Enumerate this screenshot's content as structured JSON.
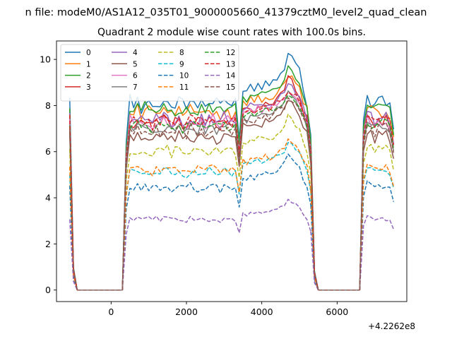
{
  "figure": {
    "suptitle": "n file: modeM0/AS1A12_035T01_9000005660_41379cztM0_level2_quad_clean",
    "title": "Quadrant 2 module wise count rates with 100.0s bins.",
    "x_offset_label": "+4.2262e8"
  },
  "chart_data": {
    "type": "line",
    "title": "Quadrant 2 module wise count rates with 100.0s bins.",
    "xlabel": "",
    "ylabel": "",
    "xlim": [
      -1450,
      7850
    ],
    "ylim": [
      -0.5,
      10.8
    ],
    "x_offset": 422620000,
    "xticks": [
      0,
      2000,
      4000,
      6000
    ],
    "yticks": [
      0,
      2,
      4,
      6,
      8,
      10
    ],
    "grid": false,
    "legend_position": "top-left",
    "legend_columns": 4,
    "segments": [
      {
        "x": [
          -1100,
          -1000,
          -900
        ],
        "profile": [
          1.0,
          0.12,
          0.0
        ]
      },
      {
        "x": [
          -900,
          300
        ],
        "profile": [
          0.0,
          0.0
        ]
      },
      {
        "x": [
          300,
          400,
          500,
          600,
          700,
          800,
          900,
          1000,
          1100,
          1200,
          1300,
          1400,
          1500,
          1600,
          1700,
          1800,
          1900,
          2000,
          2100,
          2200,
          2300,
          2400,
          2500,
          2600,
          2700,
          2800,
          2900,
          3000,
          3100,
          3200,
          3300,
          3400,
          3500,
          3600,
          3700,
          3800,
          3900,
          4000,
          4100,
          4200,
          4300,
          4400,
          4500,
          4600,
          4700,
          4800,
          4900,
          5000,
          5100,
          5200,
          5300
        ],
        "profile": [
          0.0,
          0.78,
          1.0,
          0.98,
          1.0,
          0.97,
          1.0,
          0.99,
          0.97,
          1.0,
          0.98,
          0.99,
          1.0,
          0.97,
          0.99,
          1.0,
          0.98,
          0.97,
          1.0,
          0.99,
          0.98,
          1.0,
          0.97,
          0.99,
          1.0,
          0.98,
          0.97,
          1.0,
          0.99,
          0.98,
          0.99,
          0.8,
          1.05,
          1.04,
          1.06,
          1.05,
          1.07,
          1.06,
          1.08,
          1.07,
          1.08,
          1.1,
          1.12,
          1.14,
          1.2,
          1.18,
          1.15,
          1.12,
          1.05,
          1.0,
          0.82
        ]
      },
      {
        "x": [
          5300,
          5400,
          5500
        ],
        "profile": [
          0.82,
          0.1,
          0.0
        ]
      },
      {
        "x": [
          5500,
          6600
        ],
        "profile": [
          0.0,
          0.0
        ]
      },
      {
        "x": [
          6600,
          6700,
          6800,
          6900,
          7000,
          7100,
          7200,
          7300,
          7400,
          7500
        ],
        "profile": [
          0.0,
          0.9,
          1.02,
          1.0,
          0.98,
          1.01,
          0.99,
          1.0,
          0.97,
          0.85
        ]
      }
    ],
    "series": [
      {
        "name": "0",
        "color": "#1f77b4",
        "style": "solid",
        "level": 8.2,
        "peak": 10.35
      },
      {
        "name": "1",
        "color": "#ff7f0e",
        "style": "solid",
        "level": 7.8,
        "peak": 9.3
      },
      {
        "name": "2",
        "color": "#2ca02c",
        "style": "solid",
        "level": 7.9,
        "peak": 9.7
      },
      {
        "name": "3",
        "color": "#d62728",
        "style": "solid",
        "level": 7.4,
        "peak": 9.2
      },
      {
        "name": "4",
        "color": "#9467bd",
        "style": "solid",
        "level": 7.5,
        "peak": 9.0
      },
      {
        "name": "5",
        "color": "#8c564b",
        "style": "solid",
        "level": 6.7,
        "peak": 8.3
      },
      {
        "name": "6",
        "color": "#e377c2",
        "style": "solid",
        "level": 7.4,
        "peak": 8.7
      },
      {
        "name": "7",
        "color": "#7f7f7f",
        "style": "solid",
        "level": 7.1,
        "peak": 8.5
      },
      {
        "name": "8",
        "color": "#bcbd22",
        "style": "dashed",
        "level": 6.1,
        "peak": 7.5
      },
      {
        "name": "9",
        "color": "#17becf",
        "style": "dashed",
        "level": 5.2,
        "peak": 6.4
      },
      {
        "name": "10",
        "color": "#1f77b4",
        "style": "dashed",
        "level": 4.5,
        "peak": 5.9
      },
      {
        "name": "11",
        "color": "#ff7f0e",
        "style": "dashed",
        "level": 5.3,
        "peak": 6.5
      },
      {
        "name": "12",
        "color": "#2ca02c",
        "style": "dashed",
        "level": 7.2,
        "peak": 8.6
      },
      {
        "name": "13",
        "color": "#d62728",
        "style": "dashed",
        "level": 7.4,
        "peak": 8.7
      },
      {
        "name": "14",
        "color": "#9467bd",
        "style": "dashed",
        "level": 3.1,
        "peak": 3.9
      },
      {
        "name": "15",
        "color": "#8c564b",
        "style": "dashed",
        "level": 7.0,
        "peak": 8.4
      }
    ]
  }
}
